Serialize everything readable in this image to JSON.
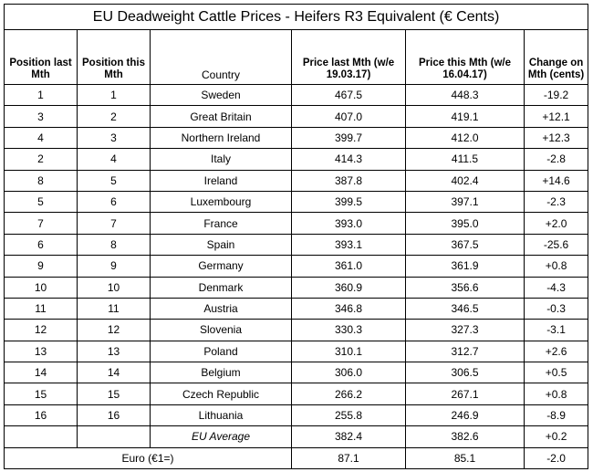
{
  "title": "EU Deadweight Cattle Prices - Heifers R3 Equivalent (€ Cents)",
  "headers": {
    "pos_last": "Position last Mth",
    "pos_this": "Position this Mth",
    "country": "Country",
    "price_last": "Price last Mth (w/e 19.03.17)",
    "price_this": "Price this Mth (w/e 16.04.17)",
    "change": "Change on Mth (cents)"
  },
  "rows": [
    {
      "pos_last": "1",
      "pos_this": "1",
      "country": "Sweden",
      "price_last": "467.5",
      "price_this": "448.3",
      "change": "-19.2"
    },
    {
      "pos_last": "3",
      "pos_this": "2",
      "country": "Great Britain",
      "price_last": "407.0",
      "price_this": "419.1",
      "change": "+12.1"
    },
    {
      "pos_last": "4",
      "pos_this": "3",
      "country": "Northern Ireland",
      "price_last": "399.7",
      "price_this": "412.0",
      "change": "+12.3"
    },
    {
      "pos_last": "2",
      "pos_this": "4",
      "country": "Italy",
      "price_last": "414.3",
      "price_this": "411.5",
      "change": "-2.8"
    },
    {
      "pos_last": "8",
      "pos_this": "5",
      "country": "Ireland",
      "price_last": "387.8",
      "price_this": "402.4",
      "change": "+14.6"
    },
    {
      "pos_last": "5",
      "pos_this": "6",
      "country": "Luxembourg",
      "price_last": "399.5",
      "price_this": "397.1",
      "change": "-2.3"
    },
    {
      "pos_last": "7",
      "pos_this": "7",
      "country": "France",
      "price_last": "393.0",
      "price_this": "395.0",
      "change": "+2.0"
    },
    {
      "pos_last": "6",
      "pos_this": "8",
      "country": "Spain",
      "price_last": "393.1",
      "price_this": "367.5",
      "change": "-25.6"
    },
    {
      "pos_last": "9",
      "pos_this": "9",
      "country": "Germany",
      "price_last": "361.0",
      "price_this": "361.9",
      "change": "+0.8"
    },
    {
      "pos_last": "10",
      "pos_this": "10",
      "country": "Denmark",
      "price_last": "360.9",
      "price_this": "356.6",
      "change": "-4.3"
    },
    {
      "pos_last": "11",
      "pos_this": "11",
      "country": "Austria",
      "price_last": "346.8",
      "price_this": "346.5",
      "change": "-0.3"
    },
    {
      "pos_last": "12",
      "pos_this": "12",
      "country": "Slovenia",
      "price_last": "330.3",
      "price_this": "327.3",
      "change": "-3.1"
    },
    {
      "pos_last": "13",
      "pos_this": "13",
      "country": "Poland",
      "price_last": "310.1",
      "price_this": "312.7",
      "change": "+2.6"
    },
    {
      "pos_last": "14",
      "pos_this": "14",
      "country": "Belgium",
      "price_last": "306.0",
      "price_this": "306.5",
      "change": "+0.5"
    },
    {
      "pos_last": "15",
      "pos_this": "15",
      "country": "Czech Republic",
      "price_last": "266.2",
      "price_this": "267.1",
      "change": "+0.8"
    },
    {
      "pos_last": "16",
      "pos_this": "16",
      "country": "Lithuania",
      "price_last": "255.8",
      "price_this": "246.9",
      "change": "-8.9"
    }
  ],
  "eu_average": {
    "country": "EU Average",
    "price_last": "382.4",
    "price_this": "382.6",
    "change": "+0.2"
  },
  "euro": {
    "label": "Euro (€1=)",
    "price_last": "87.1",
    "price_this": "85.1",
    "change": "-2.0"
  }
}
